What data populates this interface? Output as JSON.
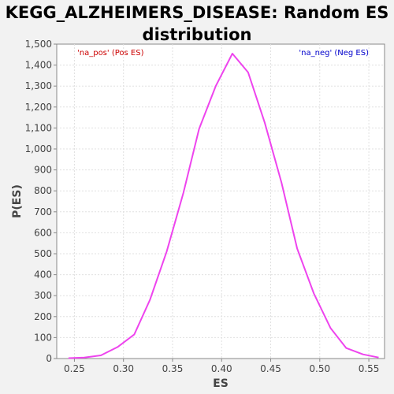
{
  "chart_data": {
    "type": "line",
    "title_line1": "KEGG_ALZHEIMERS_DISEASE: Random ES",
    "title_line2": "distribution",
    "xlabel": "ES",
    "ylabel": "P(ES)",
    "xlim": [
      0.232,
      0.566
    ],
    "ylim": [
      0,
      1500
    ],
    "x_ticks": [
      0.25,
      0.3,
      0.35,
      0.4,
      0.45,
      0.5,
      0.55
    ],
    "x_tick_labels": [
      "0.25",
      "0.30",
      "0.35",
      "0.40",
      "0.45",
      "0.50",
      "0.55"
    ],
    "y_ticks": [
      0,
      100,
      200,
      300,
      400,
      500,
      600,
      700,
      800,
      900,
      1000,
      1100,
      1200,
      1300,
      1400,
      1500
    ],
    "y_tick_labels": [
      "0",
      "100",
      "200",
      "300",
      "400",
      "500",
      "600",
      "700",
      "800",
      "900",
      "1,000",
      "1,100",
      "1,200",
      "1,300",
      "1,400",
      "1,500"
    ],
    "grid": true,
    "legend": [
      {
        "label": "'na_pos' (Pos ES)",
        "color": "#cc0000",
        "placement": "top-left"
      },
      {
        "label": "'na_neg' (Neg ES)",
        "color": "#0000cc",
        "placement": "top-right"
      }
    ],
    "series": [
      {
        "color": "#ee44ee",
        "x": [
          0.244,
          0.26,
          0.277,
          0.294,
          0.311,
          0.327,
          0.344,
          0.361,
          0.377,
          0.394,
          0.411,
          0.427,
          0.444,
          0.461,
          0.477,
          0.494,
          0.511,
          0.527,
          0.544,
          0.56
        ],
        "y": [
          2,
          5,
          15,
          55,
          115,
          280,
          510,
          790,
          1095,
          1300,
          1455,
          1365,
          1125,
          840,
          525,
          310,
          145,
          50,
          20,
          5
        ]
      }
    ]
  }
}
